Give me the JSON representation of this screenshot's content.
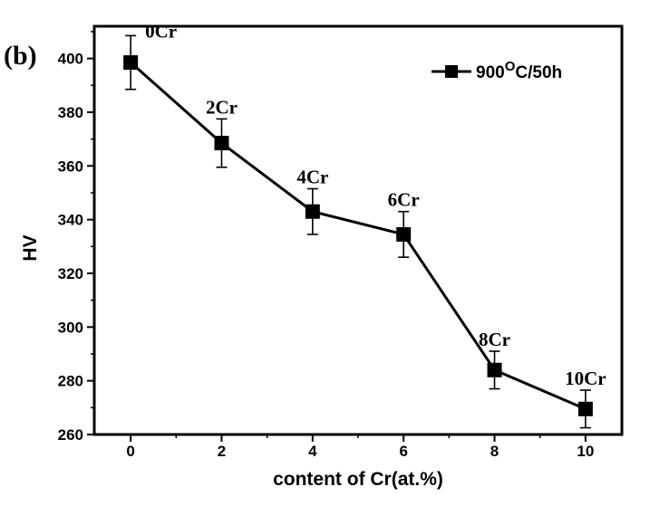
{
  "panel_label": "(b)",
  "legend": {
    "label_prefix": "900",
    "label_sup": "O",
    "label_suffix": "C/50h"
  },
  "chart_data": {
    "type": "line",
    "title": "",
    "xlabel": "content of Cr(at.%)",
    "ylabel": "HV",
    "xlim": [
      -0.8,
      10.8
    ],
    "ylim": [
      260,
      412
    ],
    "xticks": [
      0,
      2,
      4,
      6,
      8,
      10
    ],
    "yticks": [
      260,
      280,
      300,
      320,
      340,
      360,
      380,
      400
    ],
    "grid": false,
    "legend_position": "top-right",
    "series": [
      {
        "name": "900°C/50h",
        "x": [
          0,
          2,
          4,
          6,
          8,
          10
        ],
        "y": [
          398.5,
          368.5,
          343,
          334.5,
          284,
          269.5
        ],
        "error": [
          10,
          9,
          8.5,
          8.5,
          7,
          7
        ],
        "point_labels": [
          "0Cr",
          "2Cr",
          "4Cr",
          "6Cr",
          "8Cr",
          "10Cr"
        ]
      }
    ]
  }
}
